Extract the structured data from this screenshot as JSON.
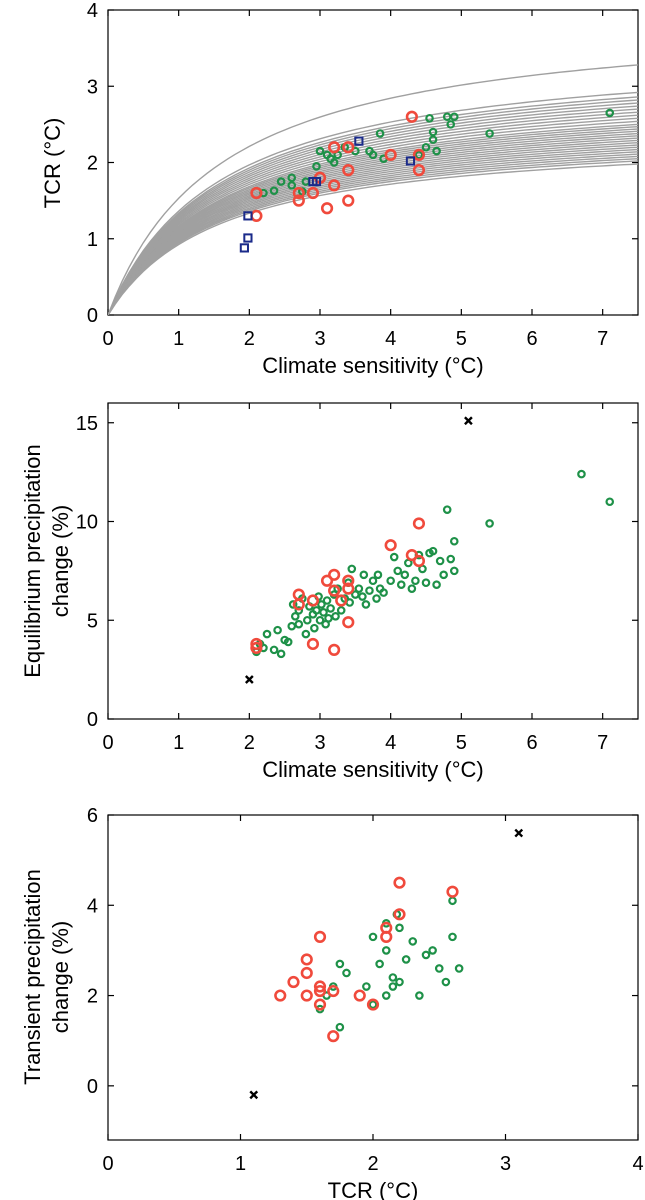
{
  "colors": {
    "curve": "#a0a0a0",
    "green": "#1e9148",
    "red": "#f04a3c",
    "blue": "#1a2a8a",
    "black": "#000000"
  },
  "chart_data": [
    {
      "type": "scatter",
      "xlabel": "Climate sensitivity (°C)",
      "ylabel": "TCR (°C)",
      "xlim": [
        0,
        7.5
      ],
      "ylim": [
        0,
        4
      ],
      "xticks": [
        0,
        1,
        2,
        3,
        4,
        5,
        6,
        7
      ],
      "yticks": [
        0,
        1,
        2,
        3,
        4
      ],
      "curves": {
        "color": "curve",
        "x_max": 7.5,
        "tcr_at_ecs_max": [
          3.28,
          2.92,
          2.86,
          2.82,
          2.78,
          2.74,
          2.7,
          2.66,
          2.62,
          2.58,
          2.54,
          2.5,
          2.47,
          2.44,
          2.41,
          2.38,
          2.35,
          2.32,
          2.29,
          2.26,
          2.23,
          2.2,
          2.17,
          2.14,
          2.11,
          2.08,
          2.05,
          2.02,
          1.98
        ]
      },
      "series": [
        {
          "color": "green",
          "marker": "circle-small",
          "points": [
            [
              2.2,
              1.6
            ],
            [
              2.35,
              1.63
            ],
            [
              2.45,
              1.75
            ],
            [
              2.6,
              1.8
            ],
            [
              2.6,
              1.7
            ],
            [
              2.8,
              1.75
            ],
            [
              2.75,
              1.62
            ],
            [
              2.95,
              1.95
            ],
            [
              3.0,
              2.15
            ],
            [
              3.1,
              2.1
            ],
            [
              3.15,
              2.05
            ],
            [
              3.2,
              2.0
            ],
            [
              3.25,
              2.1
            ],
            [
              3.35,
              2.2
            ],
            [
              3.5,
              2.15
            ],
            [
              3.7,
              2.15
            ],
            [
              3.75,
              2.1
            ],
            [
              3.85,
              2.38
            ],
            [
              3.9,
              2.05
            ],
            [
              4.4,
              2.1
            ],
            [
              4.5,
              2.2
            ],
            [
              4.55,
              2.58
            ],
            [
              4.6,
              2.3
            ],
            [
              4.6,
              2.4
            ],
            [
              4.65,
              2.15
            ],
            [
              4.8,
              2.6
            ],
            [
              4.85,
              2.5
            ],
            [
              4.9,
              2.6
            ],
            [
              5.4,
              2.38
            ],
            [
              7.1,
              2.65
            ]
          ]
        },
        {
          "color": "red",
          "marker": "circle-large",
          "points": [
            [
              2.1,
              1.6
            ],
            [
              2.1,
              1.3
            ],
            [
              2.7,
              1.6
            ],
            [
              2.7,
              1.5
            ],
            [
              2.9,
              1.6
            ],
            [
              3.0,
              1.8
            ],
            [
              3.1,
              1.4
            ],
            [
              3.2,
              2.2
            ],
            [
              3.2,
              1.7
            ],
            [
              3.4,
              2.2
            ],
            [
              3.4,
              1.9
            ],
            [
              3.4,
              1.5
            ],
            [
              4.0,
              2.1
            ],
            [
              4.3,
              2.6
            ],
            [
              4.4,
              2.1
            ],
            [
              4.4,
              1.9
            ]
          ]
        },
        {
          "color": "blue",
          "marker": "square",
          "points": [
            [
              1.93,
              0.88
            ],
            [
              1.98,
              1.01
            ],
            [
              1.98,
              1.3
            ],
            [
              2.9,
              1.75
            ],
            [
              2.95,
              1.75
            ],
            [
              3.55,
              2.28
            ],
            [
              4.28,
              2.02
            ]
          ]
        }
      ]
    },
    {
      "type": "scatter",
      "xlabel": "Climate sensitivity (°C)",
      "ylabel": "Equilibrium precipitation change (%)",
      "ylabel_lines": [
        "Equilibrium precipitation",
        "change (%)"
      ],
      "xlim": [
        0,
        7.5
      ],
      "ylim": [
        0,
        16
      ],
      "xticks": [
        0,
        1,
        2,
        3,
        4,
        5,
        6,
        7
      ],
      "yticks": [
        0,
        5,
        10,
        15
      ],
      "series": [
        {
          "color": "green",
          "marker": "circle-small",
          "points": [
            [
              2.1,
              3.4
            ],
            [
              2.15,
              3.8
            ],
            [
              2.2,
              3.6
            ],
            [
              2.25,
              4.3
            ],
            [
              2.35,
              3.5
            ],
            [
              2.4,
              4.5
            ],
            [
              2.45,
              3.3
            ],
            [
              2.5,
              4.0
            ],
            [
              2.55,
              3.9
            ],
            [
              2.6,
              4.7
            ],
            [
              2.62,
              5.8
            ],
            [
              2.65,
              5.2
            ],
            [
              2.7,
              4.8
            ],
            [
              2.7,
              5.5
            ],
            [
              2.75,
              6.1
            ],
            [
              2.8,
              4.3
            ],
            [
              2.82,
              5.0
            ],
            [
              2.85,
              5.7
            ],
            [
              2.9,
              5.3
            ],
            [
              2.92,
              4.6
            ],
            [
              2.95,
              5.5
            ],
            [
              2.98,
              6.2
            ],
            [
              3.0,
              5.0
            ],
            [
              3.02,
              5.8
            ],
            [
              3.05,
              5.4
            ],
            [
              3.08,
              4.8
            ],
            [
              3.1,
              6.0
            ],
            [
              3.12,
              5.1
            ],
            [
              3.15,
              5.6
            ],
            [
              3.2,
              6.3
            ],
            [
              3.22,
              5.2
            ],
            [
              3.25,
              6.6
            ],
            [
              3.3,
              5.5
            ],
            [
              3.35,
              6.1
            ],
            [
              3.4,
              6.9
            ],
            [
              3.42,
              5.9
            ],
            [
              3.45,
              7.6
            ],
            [
              3.5,
              6.3
            ],
            [
              3.55,
              6.6
            ],
            [
              3.6,
              6.2
            ],
            [
              3.62,
              7.3
            ],
            [
              3.65,
              5.8
            ],
            [
              3.7,
              6.5
            ],
            [
              3.75,
              7.0
            ],
            [
              3.8,
              6.1
            ],
            [
              3.82,
              7.3
            ],
            [
              3.85,
              6.6
            ],
            [
              3.9,
              6.4
            ],
            [
              4.0,
              7.0
            ],
            [
              4.05,
              8.2
            ],
            [
              4.1,
              7.5
            ],
            [
              4.15,
              6.8
            ],
            [
              4.2,
              7.3
            ],
            [
              4.25,
              7.9
            ],
            [
              4.3,
              6.6
            ],
            [
              4.35,
              7.0
            ],
            [
              4.4,
              8.3
            ],
            [
              4.45,
              7.6
            ],
            [
              4.5,
              6.9
            ],
            [
              4.55,
              8.4
            ],
            [
              4.6,
              8.5
            ],
            [
              4.65,
              6.8
            ],
            [
              4.7,
              8.0
            ],
            [
              4.75,
              7.3
            ],
            [
              4.8,
              10.6
            ],
            [
              4.85,
              8.1
            ],
            [
              4.9,
              9.0
            ],
            [
              4.9,
              7.5
            ],
            [
              5.4,
              9.9
            ],
            [
              6.7,
              12.4
            ],
            [
              7.1,
              11.0
            ]
          ]
        },
        {
          "color": "red",
          "marker": "circle-large",
          "points": [
            [
              2.1,
              3.8
            ],
            [
              2.1,
              3.6
            ],
            [
              2.7,
              6.3
            ],
            [
              2.7,
              5.8
            ],
            [
              2.9,
              6.0
            ],
            [
              2.9,
              3.8
            ],
            [
              3.1,
              7.0
            ],
            [
              3.2,
              7.3
            ],
            [
              3.2,
              6.5
            ],
            [
              3.3,
              6.0
            ],
            [
              3.4,
              7.0
            ],
            [
              3.4,
              6.6
            ],
            [
              3.4,
              4.9
            ],
            [
              3.2,
              3.5
            ],
            [
              4.0,
              8.8
            ],
            [
              4.3,
              8.3
            ],
            [
              4.4,
              9.9
            ],
            [
              4.4,
              8.0
            ]
          ]
        },
        {
          "color": "black",
          "marker": "x",
          "points": [
            [
              2.0,
              2.0
            ],
            [
              5.1,
              15.1
            ]
          ]
        }
      ]
    },
    {
      "type": "scatter",
      "xlabel": "TCR (°C)",
      "ylabel": "Transient precipitation change (%)",
      "ylabel_lines": [
        "Transient precipitation",
        "change (%)"
      ],
      "xlim": [
        0,
        4
      ],
      "ylim": [
        -1.2,
        6
      ],
      "xticks": [
        0,
        1,
        2,
        3,
        4
      ],
      "yticks": [
        0,
        2,
        4,
        6
      ],
      "series": [
        {
          "color": "green",
          "marker": "circle-small",
          "points": [
            [
              1.6,
              1.7
            ],
            [
              1.65,
              2.0
            ],
            [
              1.7,
              2.2
            ],
            [
              1.75,
              2.7
            ],
            [
              1.75,
              1.3
            ],
            [
              1.8,
              2.5
            ],
            [
              1.95,
              2.2
            ],
            [
              2.0,
              3.3
            ],
            [
              2.0,
              1.8
            ],
            [
              2.05,
              2.7
            ],
            [
              2.1,
              3.6
            ],
            [
              2.1,
              3.0
            ],
            [
              2.1,
              2.0
            ],
            [
              2.15,
              2.4
            ],
            [
              2.15,
              2.2
            ],
            [
              2.18,
              3.8
            ],
            [
              2.2,
              3.5
            ],
            [
              2.2,
              2.3
            ],
            [
              2.25,
              2.8
            ],
            [
              2.3,
              3.2
            ],
            [
              2.35,
              2.0
            ],
            [
              2.4,
              2.9
            ],
            [
              2.45,
              3.0
            ],
            [
              2.5,
              2.6
            ],
            [
              2.55,
              2.3
            ],
            [
              2.6,
              4.1
            ],
            [
              2.6,
              3.3
            ],
            [
              2.65,
              2.6
            ]
          ]
        },
        {
          "color": "red",
          "marker": "circle-large",
          "points": [
            [
              1.3,
              2.0
            ],
            [
              1.4,
              2.3
            ],
            [
              1.5,
              2.5
            ],
            [
              1.5,
              2.8
            ],
            [
              1.5,
              2.0
            ],
            [
              1.6,
              3.3
            ],
            [
              1.6,
              2.2
            ],
            [
              1.6,
              2.1
            ],
            [
              1.6,
              1.8
            ],
            [
              1.7,
              2.1
            ],
            [
              1.7,
              1.1
            ],
            [
              1.9,
              2.0
            ],
            [
              2.0,
              1.8
            ],
            [
              2.1,
              3.5
            ],
            [
              2.1,
              3.3
            ],
            [
              2.2,
              4.5
            ],
            [
              2.2,
              3.8
            ],
            [
              2.6,
              4.3
            ]
          ]
        },
        {
          "color": "black",
          "marker": "x",
          "points": [
            [
              1.1,
              -0.2
            ],
            [
              3.1,
              5.6
            ]
          ]
        }
      ]
    }
  ]
}
